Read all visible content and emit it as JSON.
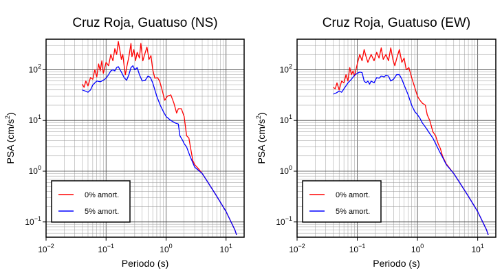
{
  "chart_data": [
    {
      "type": "line",
      "title": "Cruz Roja, Guatuso (NS)",
      "xlabel": "Periodo (s)",
      "ylabel_main": "PSA (cm/s",
      "ylabel_sup": "2",
      "ylabel_close": ")",
      "xscale": "log",
      "yscale": "log",
      "xlim": [
        0.01,
        20
      ],
      "ylim": [
        0.05,
        400
      ],
      "grid": true,
      "legend_position": "bottom-left",
      "x_ticks": [
        {
          "value": 0.01,
          "base": "10",
          "exp": "−2"
        },
        {
          "value": 0.1,
          "base": "10",
          "exp": "−1"
        },
        {
          "value": 1,
          "base": "10",
          "exp": "0"
        },
        {
          "value": 10,
          "base": "10",
          "exp": "1"
        }
      ],
      "y_ticks": [
        {
          "value": 0.1,
          "base": "10",
          "exp": "−1"
        },
        {
          "value": 1,
          "base": "10",
          "exp": "0"
        },
        {
          "value": 10,
          "base": "10",
          "exp": "1"
        },
        {
          "value": 100,
          "base": "10",
          "exp": "2"
        }
      ],
      "series": [
        {
          "name": "0% amort.",
          "color": "#ff0000",
          "points": [
            [
              0.04,
              52
            ],
            [
              0.043,
              45
            ],
            [
              0.046,
              60
            ],
            [
              0.05,
              48
            ],
            [
              0.055,
              70
            ],
            [
              0.06,
              65
            ],
            [
              0.065,
              100
            ],
            [
              0.07,
              72
            ],
            [
              0.075,
              130
            ],
            [
              0.08,
              95
            ],
            [
              0.085,
              150
            ],
            [
              0.09,
              85
            ],
            [
              0.1,
              140
            ],
            [
              0.11,
              120
            ],
            [
              0.12,
              200
            ],
            [
              0.13,
              150
            ],
            [
              0.14,
              260
            ],
            [
              0.15,
              200
            ],
            [
              0.16,
              360
            ],
            [
              0.17,
              240
            ],
            [
              0.18,
              160
            ],
            [
              0.19,
              200
            ],
            [
              0.2,
              120
            ],
            [
              0.21,
              80
            ],
            [
              0.22,
              110
            ],
            [
              0.24,
              180
            ],
            [
              0.26,
              330
            ],
            [
              0.27,
              180
            ],
            [
              0.29,
              250
            ],
            [
              0.31,
              150
            ],
            [
              0.33,
              220
            ],
            [
              0.36,
              170
            ],
            [
              0.38,
              330
            ],
            [
              0.41,
              150
            ],
            [
              0.44,
              200
            ],
            [
              0.48,
              280
            ],
            [
              0.52,
              160
            ],
            [
              0.56,
              190
            ],
            [
              0.6,
              100
            ],
            [
              0.65,
              68
            ],
            [
              0.72,
              70
            ],
            [
              0.78,
              60
            ],
            [
              0.85,
              42
            ],
            [
              0.95,
              25
            ],
            [
              1.05,
              30
            ],
            [
              1.2,
              32
            ],
            [
              1.35,
              22
            ],
            [
              1.5,
              14
            ],
            [
              1.6,
              17
            ],
            [
              1.8,
              17
            ],
            [
              2.0,
              12
            ],
            [
              2.2,
              5
            ],
            [
              2.4,
              4.5
            ],
            [
              2.6,
              2.6
            ],
            [
              2.8,
              1.6
            ],
            [
              3.0,
              1.35
            ],
            [
              3.5,
              1.1
            ],
            [
              4.0,
              0.9
            ],
            [
              5.0,
              0.6
            ],
            [
              7.0,
              0.32
            ],
            [
              10.0,
              0.16
            ],
            [
              14.0,
              0.07
            ],
            [
              15.0,
              0.055
            ]
          ]
        },
        {
          "name": "5% amort.",
          "color": "#0000ff",
          "points": [
            [
              0.04,
              40
            ],
            [
              0.045,
              38
            ],
            [
              0.05,
              36
            ],
            [
              0.055,
              40
            ],
            [
              0.06,
              50
            ],
            [
              0.07,
              60
            ],
            [
              0.08,
              58
            ],
            [
              0.09,
              62
            ],
            [
              0.1,
              68
            ],
            [
              0.11,
              80
            ],
            [
              0.12,
              95
            ],
            [
              0.13,
              100
            ],
            [
              0.14,
              95
            ],
            [
              0.15,
              110
            ],
            [
              0.16,
              115
            ],
            [
              0.18,
              90
            ],
            [
              0.2,
              70
            ],
            [
              0.22,
              62
            ],
            [
              0.24,
              80
            ],
            [
              0.26,
              110
            ],
            [
              0.28,
              120
            ],
            [
              0.3,
              100
            ],
            [
              0.33,
              110
            ],
            [
              0.36,
              80
            ],
            [
              0.4,
              60
            ],
            [
              0.45,
              62
            ],
            [
              0.5,
              75
            ],
            [
              0.55,
              70
            ],
            [
              0.6,
              55
            ],
            [
              0.7,
              30
            ],
            [
              0.8,
              20
            ],
            [
              0.9,
              15
            ],
            [
              1.0,
              12
            ],
            [
              1.2,
              10
            ],
            [
              1.4,
              9
            ],
            [
              1.6,
              8.5
            ],
            [
              1.7,
              5
            ],
            [
              1.9,
              4
            ],
            [
              2.0,
              3.5
            ],
            [
              2.2,
              3.0
            ],
            [
              2.5,
              2.0
            ],
            [
              3.0,
              1.2
            ],
            [
              4.0,
              0.9
            ],
            [
              5.0,
              0.6
            ],
            [
              7.0,
              0.32
            ],
            [
              10.0,
              0.16
            ],
            [
              14.0,
              0.07
            ],
            [
              15.0,
              0.055
            ]
          ]
        }
      ]
    },
    {
      "type": "line",
      "title": "Cruz Roja, Guatuso (EW)",
      "xlabel": "Periodo (s)",
      "ylabel_main": "PSA (cm/s",
      "ylabel_sup": "2",
      "ylabel_close": ")",
      "xscale": "log",
      "yscale": "log",
      "xlim": [
        0.01,
        20
      ],
      "ylim": [
        0.05,
        400
      ],
      "grid": true,
      "legend_position": "bottom-left",
      "x_ticks": [
        {
          "value": 0.01,
          "base": "10",
          "exp": "−2"
        },
        {
          "value": 0.1,
          "base": "10",
          "exp": "−1"
        },
        {
          "value": 1,
          "base": "10",
          "exp": "0"
        },
        {
          "value": 10,
          "base": "10",
          "exp": "1"
        }
      ],
      "y_ticks": [
        {
          "value": 0.1,
          "base": "10",
          "exp": "−1"
        },
        {
          "value": 1,
          "base": "10",
          "exp": "0"
        },
        {
          "value": 10,
          "base": "10",
          "exp": "1"
        },
        {
          "value": 100,
          "base": "10",
          "exp": "2"
        }
      ],
      "series": [
        {
          "name": "0% amort.",
          "color": "#ff0000",
          "points": [
            [
              0.04,
              45
            ],
            [
              0.043,
              42
            ],
            [
              0.046,
              55
            ],
            [
              0.05,
              40
            ],
            [
              0.055,
              60
            ],
            [
              0.06,
              55
            ],
            [
              0.065,
              80
            ],
            [
              0.07,
              60
            ],
            [
              0.075,
              110
            ],
            [
              0.08,
              80
            ],
            [
              0.085,
              95
            ],
            [
              0.09,
              75
            ],
            [
              0.1,
              130
            ],
            [
              0.11,
              200
            ],
            [
              0.12,
              150
            ],
            [
              0.13,
              250
            ],
            [
              0.14,
              180
            ],
            [
              0.15,
              140
            ],
            [
              0.17,
              200
            ],
            [
              0.19,
              150
            ],
            [
              0.21,
              220
            ],
            [
              0.23,
              170
            ],
            [
              0.25,
              270
            ],
            [
              0.27,
              160
            ],
            [
              0.3,
              200
            ],
            [
              0.33,
              150
            ],
            [
              0.36,
              270
            ],
            [
              0.39,
              160
            ],
            [
              0.42,
              120
            ],
            [
              0.46,
              180
            ],
            [
              0.5,
              250
            ],
            [
              0.55,
              140
            ],
            [
              0.6,
              170
            ],
            [
              0.65,
              100
            ],
            [
              0.72,
              110
            ],
            [
              0.8,
              70
            ],
            [
              0.9,
              45
            ],
            [
              1.0,
              30
            ],
            [
              1.1,
              25
            ],
            [
              1.2,
              22
            ],
            [
              1.35,
              20
            ],
            [
              1.45,
              13
            ],
            [
              1.6,
              10
            ],
            [
              1.8,
              6
            ],
            [
              2.0,
              5
            ],
            [
              2.2,
              3.5
            ],
            [
              2.4,
              2.8
            ],
            [
              2.6,
              2.0
            ],
            [
              3.0,
              1.4
            ],
            [
              4.0,
              0.9
            ],
            [
              5.0,
              0.6
            ],
            [
              7.0,
              0.32
            ],
            [
              10.0,
              0.16
            ],
            [
              14.0,
              0.07
            ],
            [
              15.0,
              0.055
            ]
          ]
        },
        {
          "name": "5% amort.",
          "color": "#0000ff",
          "points": [
            [
              0.04,
              33
            ],
            [
              0.045,
              35
            ],
            [
              0.05,
              38
            ],
            [
              0.055,
              36
            ],
            [
              0.06,
              42
            ],
            [
              0.07,
              55
            ],
            [
              0.08,
              65
            ],
            [
              0.09,
              78
            ],
            [
              0.1,
              85
            ],
            [
              0.11,
              90
            ],
            [
              0.12,
              88
            ],
            [
              0.13,
              60
            ],
            [
              0.14,
              55
            ],
            [
              0.15,
              60
            ],
            [
              0.16,
              52
            ],
            [
              0.17,
              60
            ],
            [
              0.19,
              55
            ],
            [
              0.21,
              70
            ],
            [
              0.23,
              68
            ],
            [
              0.25,
              75
            ],
            [
              0.28,
              72
            ],
            [
              0.3,
              78
            ],
            [
              0.33,
              75
            ],
            [
              0.36,
              60
            ],
            [
              0.4,
              65
            ],
            [
              0.45,
              80
            ],
            [
              0.5,
              80
            ],
            [
              0.55,
              65
            ],
            [
              0.6,
              50
            ],
            [
              0.7,
              32
            ],
            [
              0.8,
              20
            ],
            [
              0.9,
              15
            ],
            [
              1.0,
              13
            ],
            [
              1.1,
              11
            ],
            [
              1.2,
              9
            ],
            [
              1.4,
              7
            ],
            [
              1.6,
              5.5
            ],
            [
              1.8,
              4.5
            ],
            [
              2.0,
              3.5
            ],
            [
              2.3,
              2.5
            ],
            [
              2.6,
              1.9
            ],
            [
              3.0,
              1.35
            ],
            [
              4.0,
              0.9
            ],
            [
              5.0,
              0.6
            ],
            [
              7.0,
              0.32
            ],
            [
              10.0,
              0.16
            ],
            [
              14.0,
              0.07
            ],
            [
              15.0,
              0.055
            ]
          ]
        }
      ]
    }
  ]
}
